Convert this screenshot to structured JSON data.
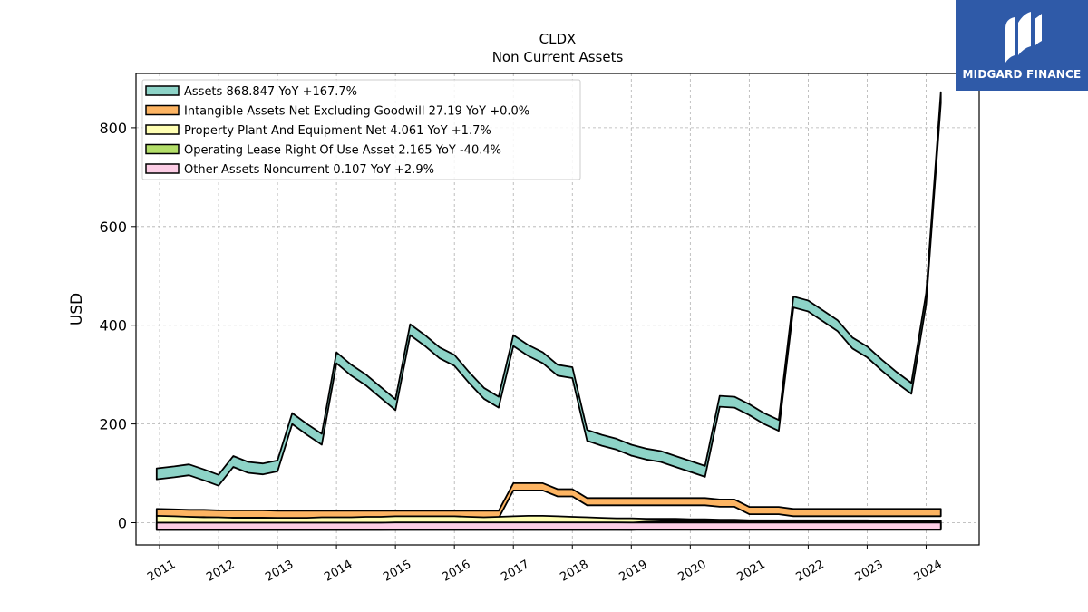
{
  "chart_data": {
    "type": "area",
    "title": "CLDX",
    "subtitle": "Non Current  Assets",
    "ylabel": "USD",
    "xlabel": "",
    "xlim": [
      2010.6,
      2024.9
    ],
    "ylim": [
      -45,
      910
    ],
    "grid": true,
    "legend_position": "top-left",
    "x_ticks": [
      2011,
      2012,
      2013,
      2014,
      2015,
      2016,
      2017,
      2018,
      2019,
      2020,
      2021,
      2022,
      2023,
      2024
    ],
    "x_tick_labels": [
      "2011",
      "2012",
      "2013",
      "2014",
      "2015",
      "2016",
      "2017",
      "2018",
      "2019",
      "2020",
      "2021",
      "2022",
      "2023",
      "2024"
    ],
    "y_ticks": [
      0,
      200,
      400,
      600,
      800
    ],
    "y_tick_labels": [
      "0",
      "200",
      "400",
      "600",
      "800"
    ],
    "x": [
      2010.95,
      2011.25,
      2011.5,
      2011.75,
      2012.0,
      2012.25,
      2012.5,
      2012.75,
      2013.0,
      2013.25,
      2013.5,
      2013.75,
      2014.0,
      2014.25,
      2014.5,
      2014.75,
      2015.0,
      2015.25,
      2015.5,
      2015.75,
      2016.0,
      2016.25,
      2016.5,
      2016.75,
      2017.0,
      2017.25,
      2017.5,
      2017.75,
      2018.0,
      2018.25,
      2018.5,
      2018.75,
      2019.0,
      2019.25,
      2019.5,
      2019.75,
      2020.0,
      2020.25,
      2020.5,
      2020.75,
      2021.0,
      2021.25,
      2021.5,
      2021.75,
      2022.0,
      2022.25,
      2022.5,
      2022.75,
      2023.0,
      2023.25,
      2023.5,
      2023.75,
      2024.0,
      2024.25
    ],
    "series": [
      {
        "name": "Assets",
        "legend_label": "Assets  868.847 YoY +167.7%",
        "color": "#8dd3c7",
        "values": [
          110,
          114,
          118,
          108,
          97,
          135,
          123,
          120,
          126,
          222,
          200,
          180,
          345,
          320,
          300,
          275,
          250,
          402,
          380,
          355,
          340,
          305,
          273,
          255,
          380,
          360,
          345,
          320,
          315,
          188,
          178,
          170,
          158,
          150,
          145,
          135,
          125,
          115,
          257,
          255,
          240,
          222,
          208,
          458,
          450,
          430,
          410,
          375,
          357,
          330,
          305,
          283,
          465,
          872
        ]
      },
      {
        "name": "Intangible Assets Net Excluding Goodwill",
        "legend_label": "Intangible Assets Net Excluding Goodwill  27.19 YoY +0.0%",
        "color": "#fdb462",
        "values": [
          28,
          27,
          26,
          26,
          25,
          25,
          25,
          25,
          24,
          24,
          24,
          24,
          24,
          24,
          24,
          24,
          24,
          24,
          24,
          24,
          24,
          24,
          24,
          24,
          80,
          80,
          80,
          68,
          68,
          50,
          50,
          50,
          50,
          50,
          50,
          50,
          50,
          50,
          47,
          47,
          32,
          32,
          32,
          28,
          28,
          28,
          28,
          28,
          28,
          28,
          28,
          28,
          28,
          28
        ]
      },
      {
        "name": "Property Plant And Equipment Net",
        "legend_label": "Property Plant And Equipment Net  4.061 YoY +1.7%",
        "color": "#ffffb3",
        "values": [
          14,
          13,
          12,
          11,
          11,
          10,
          10,
          10,
          10,
          10,
          10,
          11,
          11,
          11,
          12,
          12,
          13,
          13,
          13,
          13,
          13,
          12,
          11,
          12,
          13,
          14,
          14,
          13,
          12,
          11,
          10,
          9,
          9,
          8,
          8,
          8,
          7,
          7,
          6,
          6,
          5,
          5,
          5,
          5,
          5,
          5,
          5,
          5,
          5,
          4,
          4,
          4,
          4,
          4
        ]
      },
      {
        "name": "Operating Lease Right Of Use Asset",
        "legend_label": "Operating Lease Right Of Use Asset  2.165 YoY -40.4%",
        "color": "#b3de69",
        "values": [
          0,
          0,
          0,
          0,
          0,
          0,
          0,
          0,
          0,
          0,
          0,
          0,
          0,
          0,
          0,
          0,
          0,
          0,
          0,
          0,
          0,
          0,
          0,
          0,
          0,
          0,
          0,
          0,
          0,
          0,
          0,
          0,
          0,
          2,
          3,
          3,
          3,
          3,
          3,
          3,
          3,
          3,
          3,
          3,
          3,
          3,
          3,
          3,
          3,
          3,
          3,
          3,
          2,
          2
        ]
      },
      {
        "name": "Other Assets Noncurrent",
        "legend_label": "Other Assets Noncurrent  0.107 YoY +2.9%",
        "color": "#fccde5",
        "values": [
          0,
          0,
          0,
          0,
          0,
          0,
          0,
          0,
          0,
          0,
          0,
          0,
          0,
          0,
          0,
          0,
          0.5,
          0.5,
          0.5,
          0.5,
          0.5,
          0.5,
          0.5,
          0.5,
          0.5,
          0.5,
          0.5,
          0.5,
          0.5,
          0.5,
          0.5,
          0.5,
          0.3,
          0.2,
          0.1,
          0.1,
          0.1,
          0.1,
          0.1,
          0.1,
          0.1,
          0.1,
          0.1,
          0.1,
          0.1,
          0.1,
          0.1,
          0.1,
          0.1,
          0.1,
          0.1,
          0.1,
          0.1,
          0.1
        ]
      }
    ]
  },
  "logo": {
    "text": "MIDGARD FINANCE",
    "background": "#2f5aa8"
  }
}
